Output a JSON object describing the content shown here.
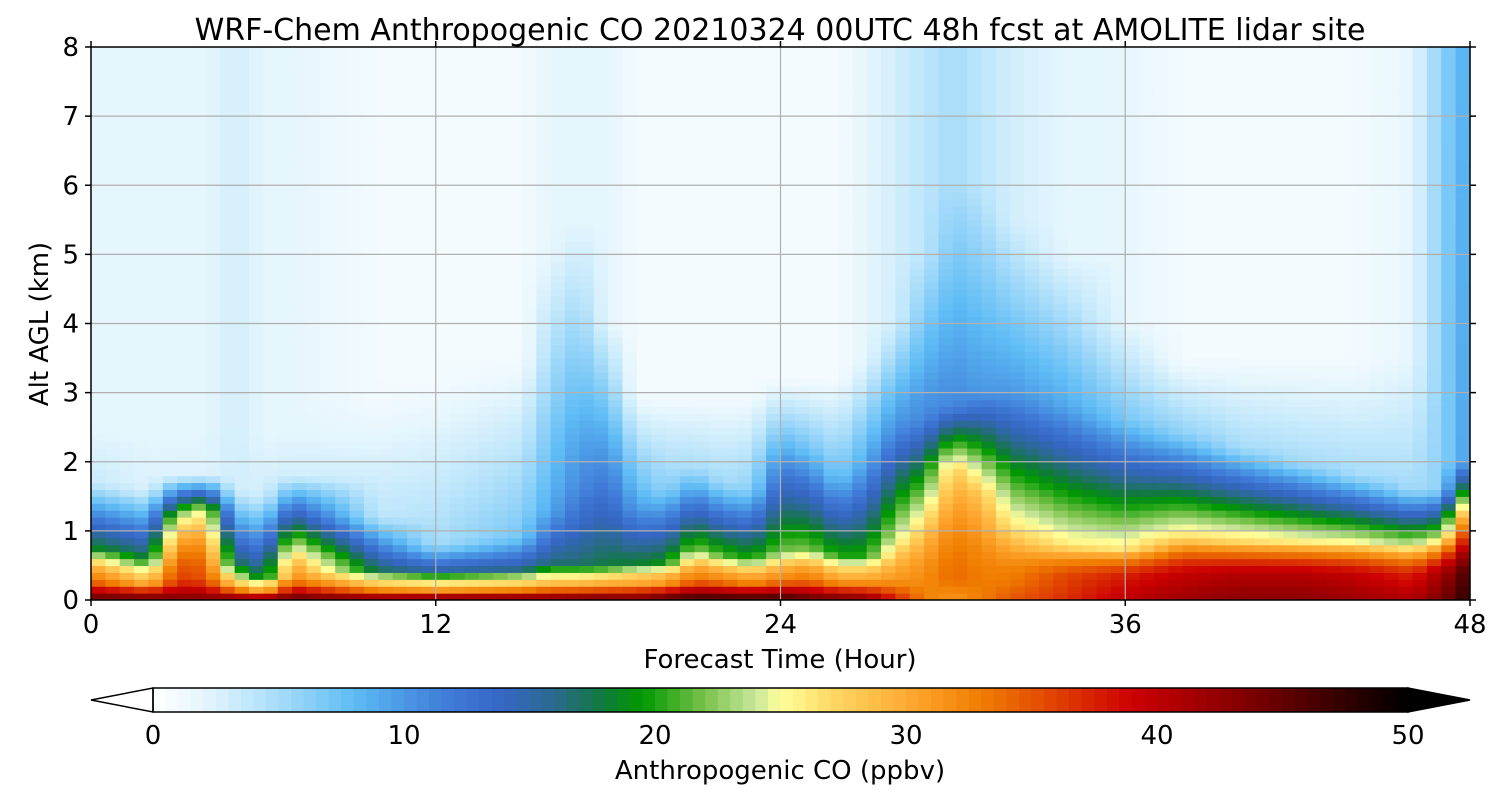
{
  "chart_data": {
    "type": "heatmap",
    "title": "WRF-Chem Anthropogenic CO  20210324 00UTC 48h fcst at AMOLITE lidar site",
    "xlabel": "Forecast Time (Hour)",
    "ylabel": "Alt AGL (km)",
    "xlim": [
      0,
      48
    ],
    "ylim": [
      0,
      8
    ],
    "x_ticks": [
      0,
      12,
      24,
      36,
      48
    ],
    "y_ticks": [
      0,
      1,
      2,
      3,
      4,
      5,
      6,
      7,
      8
    ],
    "grid": true,
    "value_unit_label": "Anthropogenic CO  (ppbv)",
    "colorbar": {
      "range": [
        0,
        50
      ],
      "ticks": [
        0,
        10,
        20,
        30,
        40,
        50
      ],
      "extend": "both",
      "orientation": "horizontal",
      "placement": "bottom",
      "stops": [
        {
          "value": 0,
          "color": "#ffffff"
        },
        {
          "value": 2,
          "color": "#e6f6fd"
        },
        {
          "value": 4,
          "color": "#bde6fb"
        },
        {
          "value": 6,
          "color": "#8fd1f8"
        },
        {
          "value": 8,
          "color": "#5ebcf5"
        },
        {
          "value": 10,
          "color": "#4a97e4"
        },
        {
          "value": 12,
          "color": "#3f78d6"
        },
        {
          "value": 14,
          "color": "#3566c2"
        },
        {
          "value": 16,
          "color": "#2a6a8c"
        },
        {
          "value": 18,
          "color": "#0f7a3a"
        },
        {
          "value": 19.5,
          "color": "#009900"
        },
        {
          "value": 22,
          "color": "#7ac24c"
        },
        {
          "value": 24,
          "color": "#c9e69a"
        },
        {
          "value": 25,
          "color": "#ffff99"
        },
        {
          "value": 27,
          "color": "#ffd966"
        },
        {
          "value": 30,
          "color": "#ffaa33"
        },
        {
          "value": 33,
          "color": "#f07d00"
        },
        {
          "value": 36,
          "color": "#e04000"
        },
        {
          "value": 39,
          "color": "#cc0000"
        },
        {
          "value": 43,
          "color": "#8b0000"
        },
        {
          "value": 47,
          "color": "#3a0000"
        },
        {
          "value": 50,
          "color": "#000000"
        }
      ]
    },
    "hours": [
      0,
      2,
      3,
      4,
      5,
      6,
      7,
      10,
      12,
      15,
      16,
      17,
      18,
      19,
      20,
      21,
      22,
      23,
      24,
      25,
      26,
      27,
      28,
      29,
      30,
      31,
      32,
      34,
      36,
      38,
      40,
      42,
      44,
      46,
      47,
      48
    ],
    "heights_km": [
      0,
      0.25,
      0.5,
      0.75,
      1,
      1.25,
      1.5,
      1.75,
      2,
      2.25,
      2.5,
      2.75,
      3,
      3.25,
      3.5,
      3.75,
      4,
      4.25,
      4.5,
      4.75,
      5,
      5.25,
      5.5,
      5.75,
      6,
      6.25,
      6.5,
      6.75,
      7,
      7.25,
      7.5,
      7.75,
      8
    ],
    "profiles": {
      "comment": "",
      "boundary_layer_top_km": [
        0.75,
        0.6,
        1.2,
        1.3,
        0.5,
        0.35,
        0.8,
        0.45,
        0.4,
        0.45,
        0.5,
        0.5,
        0.5,
        0.55,
        0.55,
        0.75,
        0.65,
        0.6,
        0.7,
        0.75,
        0.65,
        0.65,
        0.9,
        1.2,
        1.9,
        1.55,
        1.0,
        0.8,
        0.75,
        0.9,
        0.85,
        0.85,
        0.85,
        0.8,
        0.9,
        1.4
      ],
      "surface_co_ppbv": [
        46,
        46,
        44,
        44,
        45,
        45,
        46,
        45,
        46,
        46,
        45,
        46,
        46,
        45,
        47,
        48,
        48,
        48,
        48,
        46,
        45,
        44,
        38,
        33,
        31,
        33,
        35,
        37,
        40,
        42,
        43,
        43,
        42,
        41,
        44,
        48
      ],
      "mixed_layer_co_ppbv": [
        33,
        28,
        36,
        35,
        28,
        28,
        32,
        28,
        28,
        28,
        29,
        29,
        30,
        30,
        31,
        33,
        32,
        31,
        32,
        33,
        30,
        30,
        31,
        32,
        34,
        33,
        33,
        36,
        38,
        40,
        41,
        41,
        40,
        38,
        42,
        47
      ],
      "transition_co_ppbv": [
        13,
        12,
        18,
        19,
        12,
        11,
        18,
        11,
        10,
        10,
        11,
        11,
        12,
        12,
        13,
        16,
        15,
        14,
        16,
        16,
        14,
        14,
        18,
        20,
        22,
        22,
        21,
        20,
        20,
        21,
        21,
        20,
        19,
        18,
        18,
        22
      ],
      "transition_top_km": [
        1.7,
        1.6,
        1.8,
        1.8,
        1.6,
        1.5,
        1.8,
        1.2,
        0.8,
        0.9,
        1.3,
        1.6,
        1.7,
        1.4,
        1.6,
        1.9,
        1.7,
        1.6,
        2.4,
        2.2,
        1.8,
        2.0,
        2.4,
        2.6,
        2.8,
        3.0,
        3.0,
        2.8,
        2.6,
        2.4,
        2.2,
        2.0,
        1.8,
        1.6,
        1.6,
        2.0
      ],
      "free_trop_co_ppbv": [
        3.5,
        2.5,
        2.5,
        2.5,
        3,
        3,
        3,
        4,
        5,
        7,
        9,
        11,
        12,
        9,
        6,
        5,
        5,
        6,
        7,
        7,
        7,
        9,
        11,
        11,
        11,
        10,
        10,
        9,
        7,
        6,
        5,
        5,
        5,
        5,
        6,
        10
      ],
      "free_trop_top_km": [
        2.5,
        2.5,
        2.5,
        2.5,
        2.5,
        2.5,
        2.5,
        3.0,
        3.2,
        3.5,
        5.0,
        5.5,
        4.0,
        3.0,
        3.0,
        3.0,
        3.0,
        3.0,
        3.2,
        3.2,
        3.2,
        3.5,
        4.0,
        5.0,
        6.0,
        6.0,
        5.5,
        5.0,
        4.0,
        3.5,
        3.5,
        3.5,
        3.5,
        3.5,
        5.5,
        8.0
      ],
      "upper_co_ppbv": [
        2,
        2,
        2,
        2,
        3,
        2,
        2,
        1,
        1,
        1,
        2,
        2,
        2,
        1,
        1,
        1,
        1,
        1,
        1,
        1,
        1,
        2,
        3,
        4,
        5,
        4,
        3,
        2,
        2,
        1,
        1,
        1,
        1,
        2,
        6,
        9
      ]
    }
  }
}
